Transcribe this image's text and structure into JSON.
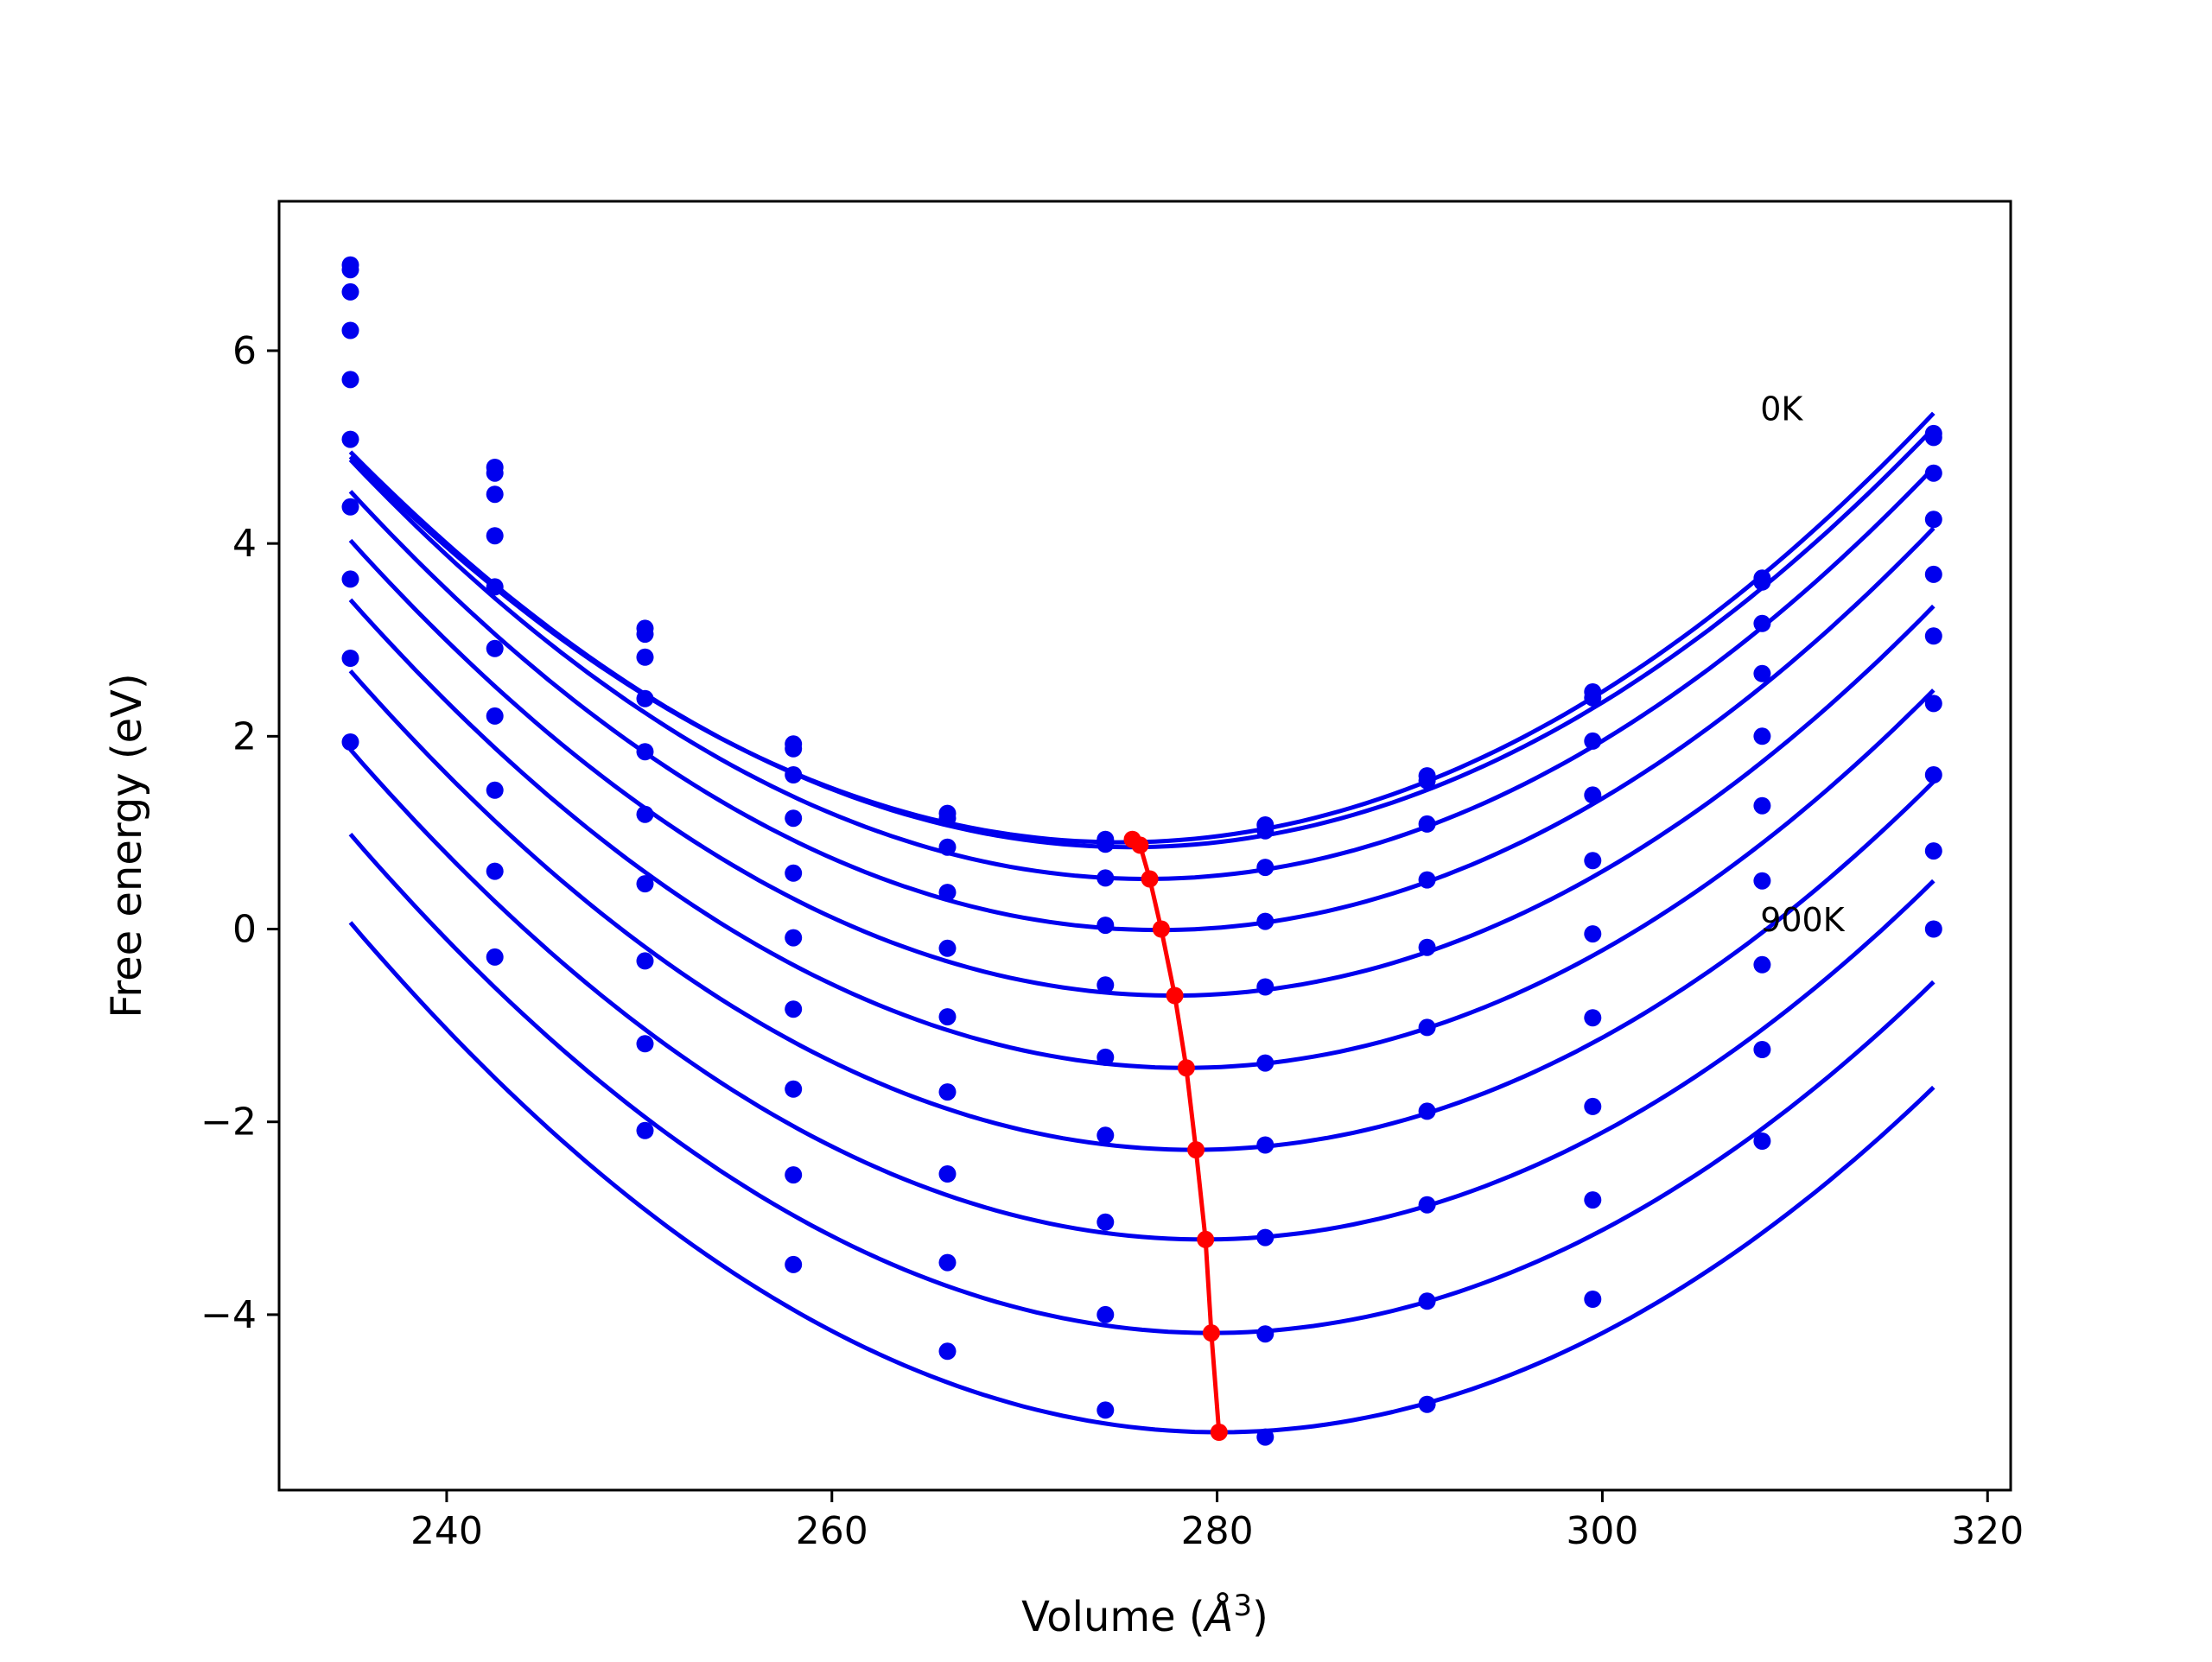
{
  "chart_data": {
    "type": "line",
    "title": "",
    "xlabel_prefix": "Volume (",
    "xlabel_unit": "Å",
    "xlabel_exp": "3",
    "xlabel_suffix": ")",
    "ylabel": "Free energy (eV)",
    "xlim": [
      231.3,
      321.2
    ],
    "ylim": [
      -5.82,
      7.55
    ],
    "grid": false,
    "legend": "none",
    "xticks": [
      240,
      260,
      280,
      300,
      320
    ],
    "xtick_labels": [
      "240",
      "260",
      "280",
      "300",
      "320"
    ],
    "yticks": [
      -4,
      -2,
      0,
      2,
      4,
      6
    ],
    "ytick_labels": [
      "−4",
      "−2",
      "0",
      "2",
      "4",
      "6"
    ],
    "colors": {
      "curves": "#0000ee",
      "minimum_path": "#ff0000"
    },
    "x": [
      235.0,
      242.5,
      250.3,
      258.0,
      266.0,
      274.2,
      282.5,
      290.9,
      299.5,
      308.3,
      317.2
    ],
    "series": [
      {
        "values": [
          6.89,
          4.79,
          3.12,
          1.92,
          1.2,
          0.93,
          1.08,
          1.59,
          2.46,
          3.64,
          5.14
        ]
      },
      {
        "values": [
          6.84,
          4.73,
          3.06,
          1.87,
          1.15,
          0.88,
          1.02,
          1.54,
          2.4,
          3.6,
          5.1
        ]
      },
      {
        "values": [
          6.61,
          4.51,
          2.82,
          1.6,
          0.85,
          0.53,
          0.64,
          1.09,
          1.95,
          3.17,
          4.73
        ]
      },
      {
        "values": [
          6.21,
          4.08,
          2.39,
          1.15,
          0.38,
          0.04,
          0.08,
          0.51,
          1.39,
          2.65,
          4.25
        ]
      },
      {
        "values": [
          5.7,
          3.55,
          1.84,
          0.58,
          -0.2,
          -0.58,
          -0.6,
          -0.19,
          0.71,
          2.0,
          3.68
        ]
      },
      {
        "values": [
          5.08,
          2.91,
          1.19,
          -0.09,
          -0.91,
          -1.33,
          -1.39,
          -1.02,
          -0.05,
          1.28,
          3.04
        ]
      },
      {
        "values": [
          4.38,
          2.21,
          0.47,
          -0.83,
          -1.69,
          -2.14,
          -2.24,
          -1.89,
          -0.92,
          0.5,
          2.34
        ]
      },
      {
        "values": [
          3.63,
          1.44,
          -0.33,
          -1.66,
          -2.54,
          -3.04,
          -3.2,
          -2.86,
          -1.84,
          -0.37,
          1.6
        ]
      },
      {
        "values": [
          2.81,
          0.6,
          -1.19,
          -2.55,
          -3.46,
          -4.0,
          -4.2,
          -3.86,
          -2.81,
          -1.25,
          0.81
        ]
      },
      {
        "values": [
          1.94,
          -0.29,
          -2.09,
          -3.48,
          -4.38,
          -4.99,
          -5.27,
          -4.93,
          -3.84,
          -2.2,
          0.0
        ]
      }
    ],
    "fits": [
      {
        "a": 0.0025,
        "v0": 275.0,
        "e0": 0.9
      },
      {
        "a": 0.0025,
        "v0": 275.5,
        "e0": 0.85
      },
      {
        "a": 0.00255,
        "v0": 276.3,
        "e0": 0.52
      },
      {
        "a": 0.00258,
        "v0": 277.0,
        "e0": -0.01
      },
      {
        "a": 0.00259,
        "v0": 277.7,
        "e0": -0.69
      },
      {
        "a": 0.00259,
        "v0": 278.3,
        "e0": -1.44
      },
      {
        "a": 0.00259,
        "v0": 278.8,
        "e0": -2.29
      },
      {
        "a": 0.00259,
        "v0": 279.3,
        "e0": -3.22
      },
      {
        "a": 0.00259,
        "v0": 279.7,
        "e0": -4.19
      },
      {
        "a": 0.0026,
        "v0": 280.1,
        "e0": -5.22
      }
    ],
    "minimum_path": {
      "x": [
        275.6,
        276.0,
        276.5,
        277.1,
        277.8,
        278.4,
        278.9,
        279.4,
        279.7,
        280.1
      ],
      "y": [
        0.93,
        0.87,
        0.52,
        0.0,
        -0.69,
        -1.44,
        -2.29,
        -3.22,
        -4.19,
        -5.22
      ]
    },
    "annotations": [
      {
        "text": "0K",
        "x": 308.2,
        "y": 5.28
      },
      {
        "text": "900K",
        "x": 308.2,
        "y": -0.02
      }
    ]
  }
}
